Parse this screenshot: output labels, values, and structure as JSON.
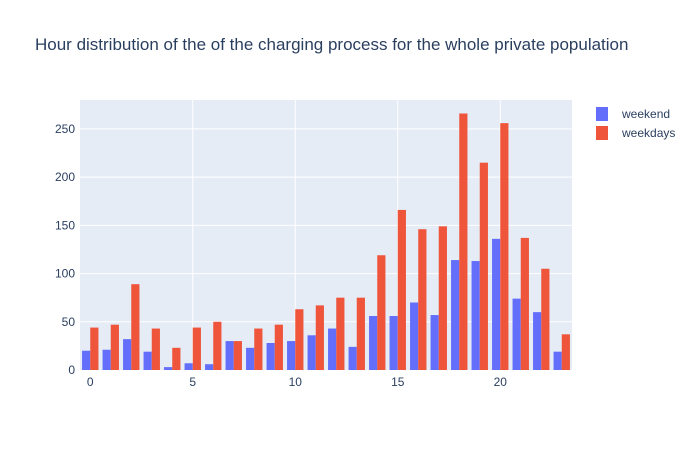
{
  "chart_data": {
    "type": "bar",
    "title": "Hour distribution of the of the charging process for the whole private population",
    "xlabel": "",
    "ylabel": "",
    "x": [
      0,
      1,
      2,
      3,
      4,
      5,
      6,
      7,
      8,
      9,
      10,
      11,
      12,
      13,
      14,
      15,
      16,
      17,
      18,
      19,
      20,
      21,
      22,
      23
    ],
    "xlim": [
      -0.5,
      23.5
    ],
    "ylim": [
      0,
      280
    ],
    "xticks": [
      0,
      5,
      10,
      15,
      20
    ],
    "yticks": [
      0,
      50,
      100,
      150,
      200,
      250
    ],
    "grid": true,
    "legend_position": "top-right",
    "series": [
      {
        "name": "weekend",
        "color": "#636efa",
        "values": [
          20,
          21,
          32,
          19,
          3,
          7,
          6,
          30,
          23,
          28,
          30,
          36,
          43,
          24,
          56,
          56,
          70,
          57,
          114,
          113,
          136,
          74,
          60,
          19
        ]
      },
      {
        "name": "weekdays",
        "color": "#ef553b",
        "values": [
          44,
          47,
          89,
          43,
          23,
          44,
          50,
          30,
          43,
          47,
          63,
          67,
          75,
          75,
          119,
          166,
          146,
          149,
          266,
          215,
          256,
          137,
          105,
          37
        ]
      }
    ]
  }
}
